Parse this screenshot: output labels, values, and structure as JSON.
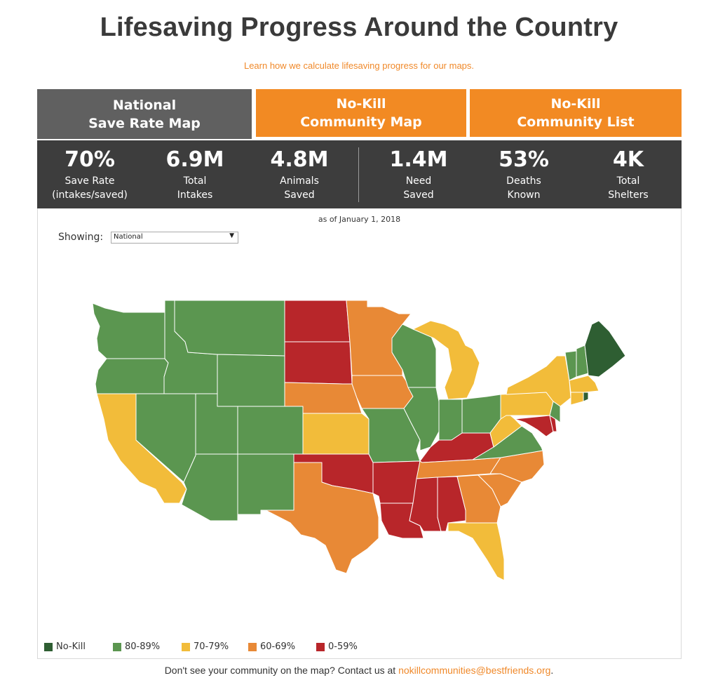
{
  "header": {
    "title": "Lifesaving Progress Around the Country",
    "learn_link": "Learn how we calculate lifesaving progress for our maps."
  },
  "tabs": [
    {
      "line1": "National",
      "line2": "Save Rate Map",
      "active": true
    },
    {
      "line1": "No-Kill",
      "line2": "Community Map",
      "active": false
    },
    {
      "line1": "No-Kill",
      "line2": "Community List",
      "active": false
    }
  ],
  "stats": [
    {
      "value": "70%",
      "label": "Save Rate\n(intakes/saved)"
    },
    {
      "value": "6.9M",
      "label": "Total\nIntakes"
    },
    {
      "value": "4.8M",
      "label": "Animals\nSaved"
    },
    {
      "value": "1.4M",
      "label": "Need\nSaved"
    },
    {
      "value": "53%",
      "label": "Deaths\nKnown"
    },
    {
      "value": "4K",
      "label": "Total\nShelters"
    }
  ],
  "map": {
    "as_of": "as of January 1, 2018",
    "showing_label": "Showing:",
    "showing_value": "National"
  },
  "legend": [
    {
      "label": "No-Kill",
      "color": "#2e5e32"
    },
    {
      "label": "80-89%",
      "color": "#5b9650"
    },
    {
      "label": "70-79%",
      "color": "#f2bc3a"
    },
    {
      "label": "60-69%",
      "color": "#e88936"
    },
    {
      "label": "0-59%",
      "color": "#b8262a"
    }
  ],
  "footer": {
    "text": "Don't see your community on the map? Contact us at ",
    "email": "nokillcommunities@bestfriends.org",
    "end": "."
  }
}
